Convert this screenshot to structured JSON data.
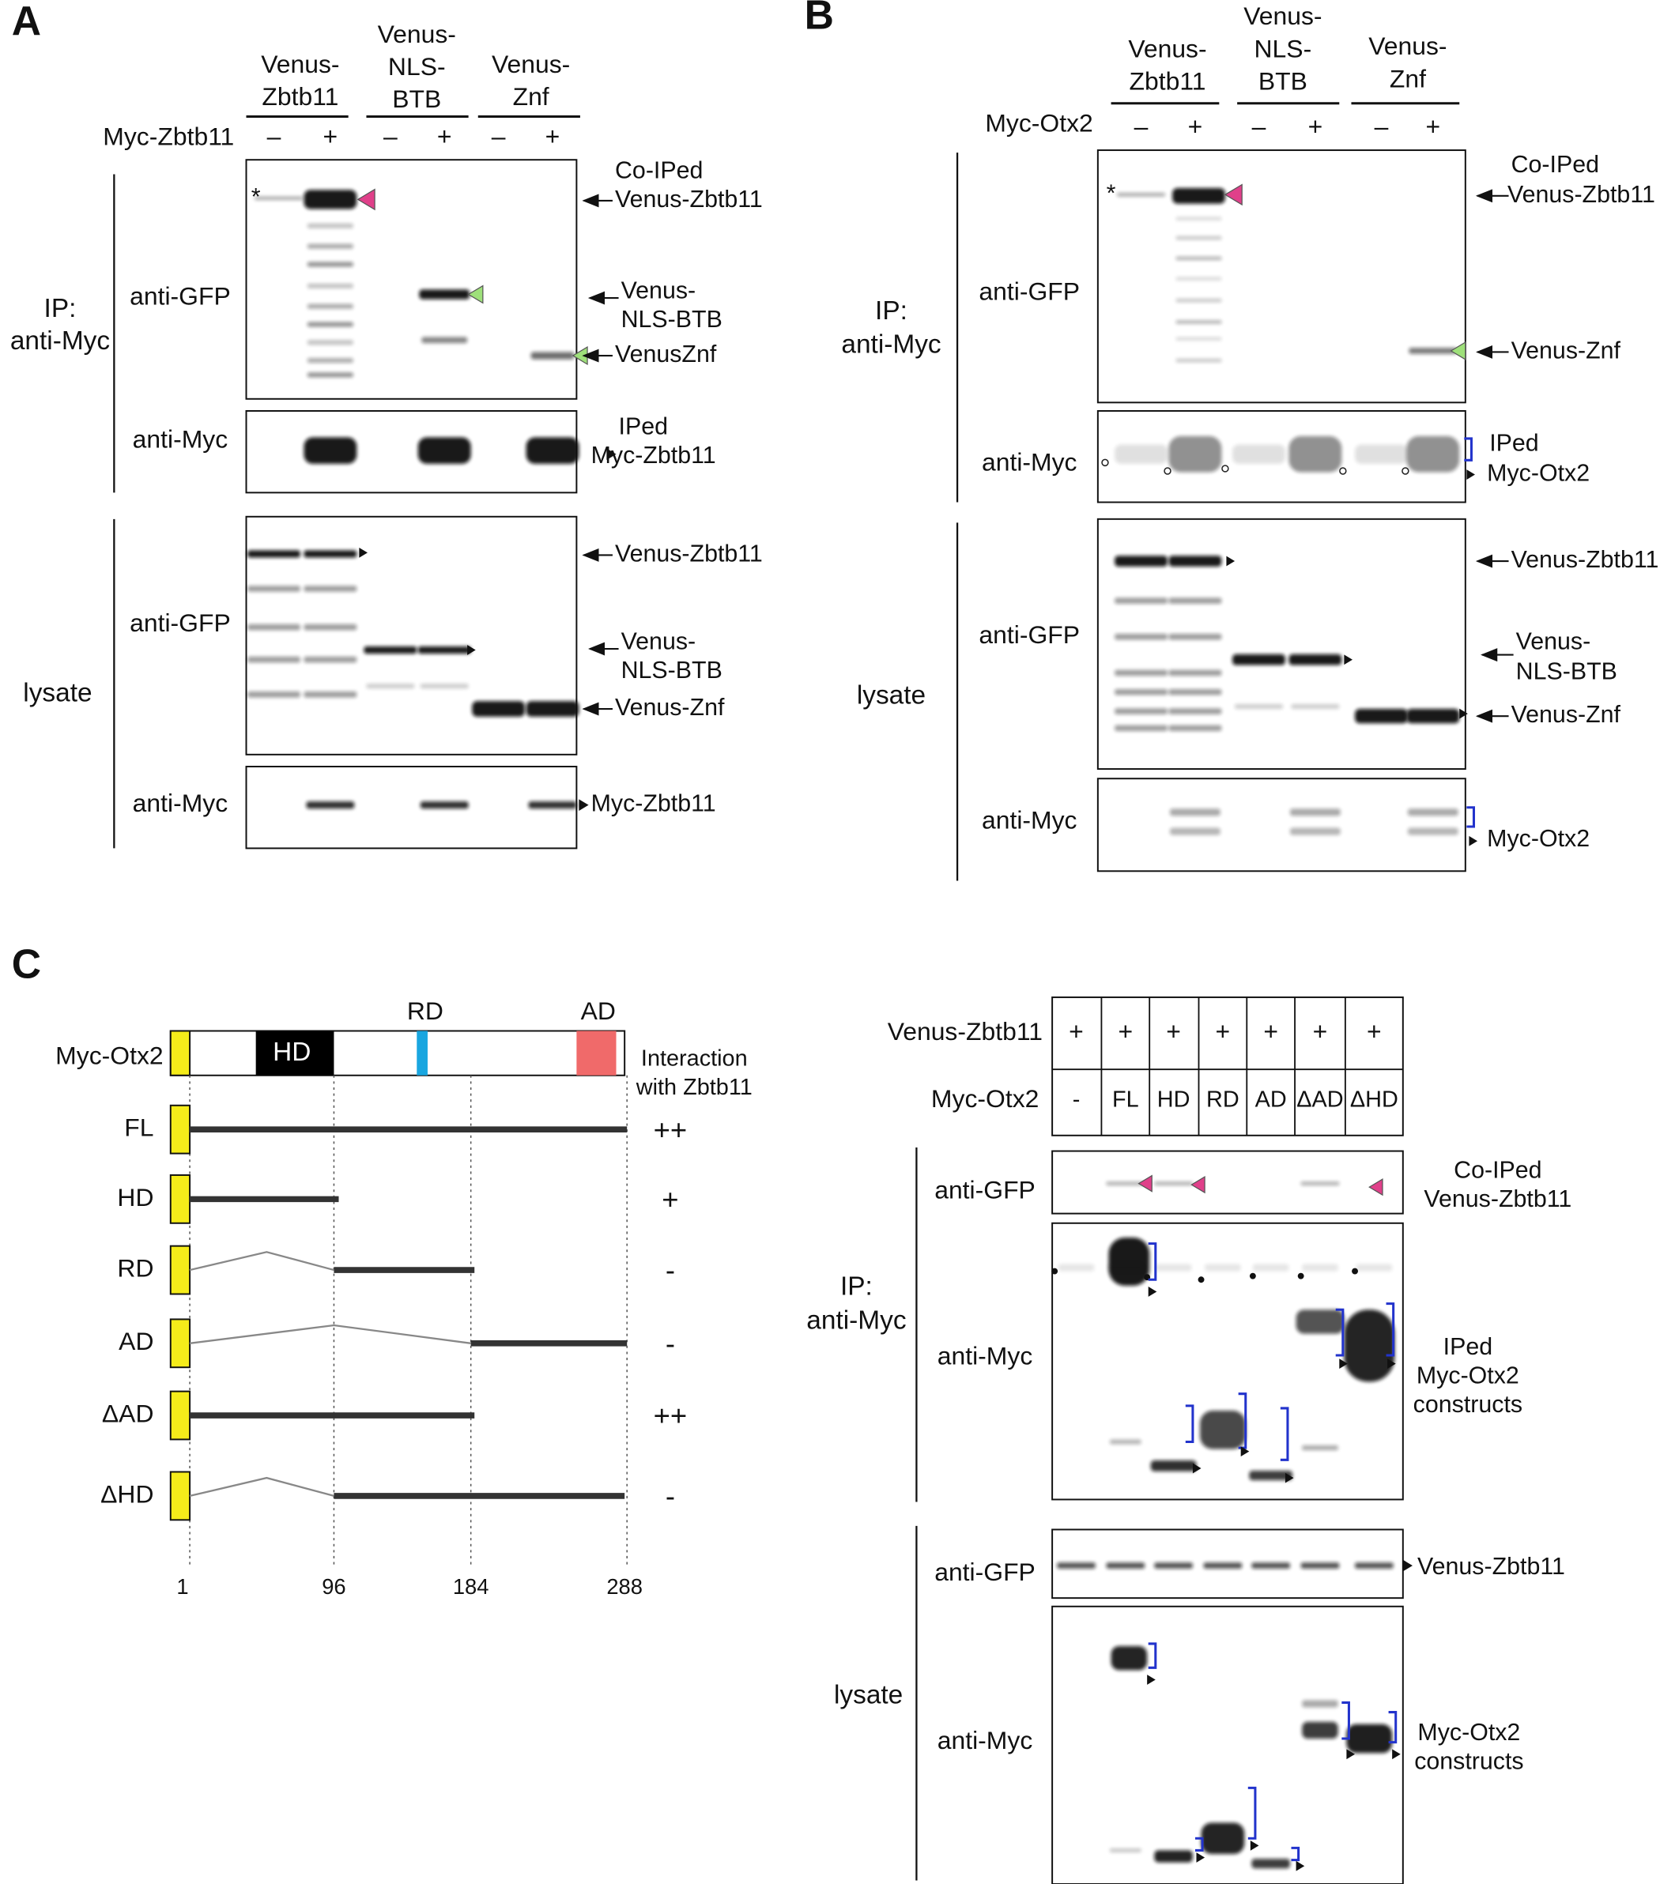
{
  "panel_a": {
    "label": "A",
    "lanes": [
      [
        "Venus-",
        "Zbtb11"
      ],
      [
        "Venus-",
        "NLS-",
        "BTB"
      ],
      [
        "Venus-",
        "Znf"
      ]
    ],
    "treatment": {
      "label": "Myc-Zbtb11",
      "signs": [
        "–",
        "+",
        "–",
        "+",
        "–",
        "+"
      ]
    },
    "groups": [
      [
        "IP:",
        "anti-Myc"
      ],
      [
        "lysate"
      ]
    ],
    "probes": [
      "anti-GFP",
      "anti-Myc",
      "anti-GFP",
      "anti-Myc"
    ],
    "asterisk": "*",
    "annotations": [
      [
        "Co-IPed",
        "Venus-Zbtb11"
      ],
      [
        "Venus-",
        "NLS-BTB"
      ],
      [
        "VenusZnf"
      ],
      [
        "IPed",
        "Myc-Zbtb11"
      ],
      [
        "Venus-Zbtb11"
      ],
      [
        "Venus-",
        "NLS-BTB"
      ],
      [
        "Venus-Znf"
      ],
      [
        "Myc-Zbtb11"
      ]
    ]
  },
  "panel_b": {
    "label": "B",
    "lanes": [
      [
        "Venus-",
        "Zbtb11"
      ],
      [
        "Venus-",
        "NLS-",
        "BTB"
      ],
      [
        "Venus-",
        "Znf"
      ]
    ],
    "treatment": {
      "label": "Myc-Otx2",
      "signs": [
        "–",
        "+",
        "–",
        "+",
        "–",
        "+"
      ]
    },
    "groups": [
      [
        "IP:",
        "anti-Myc"
      ],
      [
        "lysate"
      ]
    ],
    "probes": [
      "anti-GFP",
      "anti-Myc",
      "anti-GFP",
      "anti-Myc"
    ],
    "asterisk": "*",
    "annotations": [
      [
        "Co-IPed",
        "Venus-Zbtb11"
      ],
      [
        "Venus-Znf"
      ],
      [
        "IPed",
        "Myc-Otx2"
      ],
      [
        "Venus-Zbtb11"
      ],
      [
        "Venus-",
        "NLS-BTB"
      ],
      [
        "Venus-Znf"
      ],
      [
        "Myc-Otx2"
      ]
    ]
  },
  "panel_c": {
    "label": "C",
    "domain_map": {
      "protein": "Myc-Otx2",
      "domains": [
        "HD",
        "RD",
        "AD"
      ],
      "interaction_header": [
        "Interaction",
        "with Zbtb11"
      ],
      "constructs": [
        {
          "name": "FL",
          "interaction": "++"
        },
        {
          "name": "HD",
          "interaction": "+"
        },
        {
          "name": "RD",
          "interaction": "-"
        },
        {
          "name": "AD",
          "interaction": "-"
        },
        {
          "name": "ΔAD",
          "interaction": "++"
        },
        {
          "name": "ΔHD",
          "interaction": "-"
        }
      ],
      "positions": [
        1,
        96,
        184,
        288
      ]
    },
    "blot": {
      "rows": [
        {
          "label": "Venus-Zbtb11",
          "cells": [
            "+",
            "+",
            "+",
            "+",
            "+",
            "+",
            "+"
          ]
        },
        {
          "label": "Myc-Otx2",
          "cells": [
            "-",
            "FL",
            "HD",
            "RD",
            "AD",
            "ΔAD",
            "ΔHD"
          ]
        }
      ],
      "groups": [
        [
          "IP:",
          "anti-Myc"
        ],
        [
          "lysate"
        ]
      ],
      "probes": [
        "anti-GFP",
        "anti-Myc",
        "anti-GFP",
        "anti-Myc"
      ],
      "annotations": [
        [
          "Co-IPed",
          "Venus-Zbtb11"
        ],
        [
          "IPed",
          "Myc-Otx2",
          "constructs"
        ],
        [
          "Venus-Zbtb11"
        ],
        [
          "Myc-Otx2",
          "constructs"
        ]
      ]
    }
  }
}
